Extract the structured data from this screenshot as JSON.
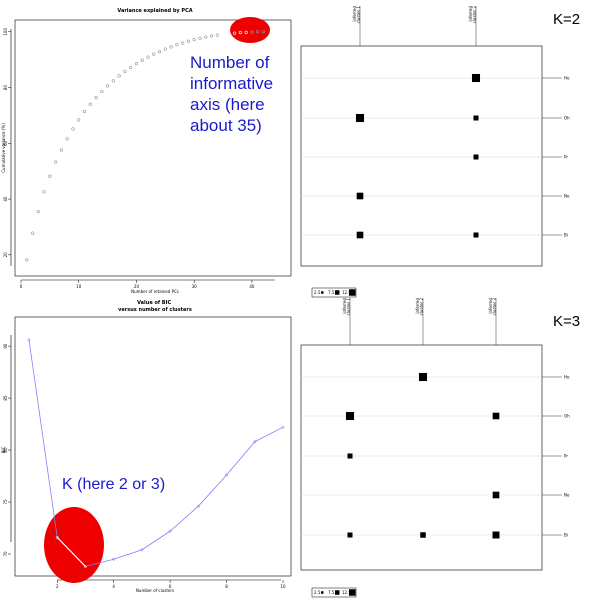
{
  "colors": {
    "pca_points": "#999999",
    "bic_line": "#8080ff",
    "highlight": "#ee0000",
    "annotation_text": "#1a1acc",
    "bubble": "#000000"
  },
  "chart_data": [
    {
      "type": "scatter",
      "title": "Variance explained by PCA",
      "xlabel": "Number of retained PCs",
      "ylabel": "Cumulative variance (%)",
      "xlim": [
        0,
        44
      ],
      "ylim": [
        16,
        101
      ],
      "xticks": [
        0,
        10,
        20,
        30,
        40
      ],
      "yticks": [
        20,
        40,
        60,
        80,
        100
      ],
      "x": [
        1,
        2,
        3,
        4,
        5,
        6,
        7,
        8,
        9,
        10,
        11,
        12,
        13,
        14,
        15,
        16,
        17,
        18,
        19,
        20,
        21,
        22,
        23,
        24,
        25,
        26,
        27,
        28,
        29,
        30,
        31,
        32,
        33,
        34,
        35,
        36,
        37,
        38,
        39,
        40,
        41,
        42
      ],
      "y": [
        18.2,
        27.8,
        35.5,
        42.6,
        48.2,
        53.3,
        57.6,
        61.6,
        65.2,
        68.4,
        71.4,
        74.0,
        76.4,
        78.6,
        80.6,
        82.4,
        84.2,
        85.8,
        87.2,
        88.6,
        89.8,
        90.9,
        92.0,
        92.9,
        93.8,
        94.6,
        95.4,
        96.0,
        96.6,
        97.2,
        97.7,
        98.1,
        98.5,
        98.8,
        99.1,
        99.3,
        99.5,
        99.7,
        99.8,
        99.9,
        100.0,
        100.0
      ],
      "annotation": "Number of informative axis (here about 35)"
    },
    {
      "type": "line",
      "title": "Value of BIC\nversus number of clusters",
      "xlabel": "Number of clusters",
      "ylabel": "BIC",
      "xlim": [
        0.5,
        10.3
      ],
      "ylim": [
        67.5,
        92.8
      ],
      "xticks": [
        2,
        4,
        6,
        8,
        10
      ],
      "yticks": [
        70,
        75,
        80,
        85,
        90
      ],
      "x": [
        1,
        2,
        3,
        4,
        5,
        6,
        7,
        8,
        9,
        10
      ],
      "y": [
        90.6,
        71.6,
        68.8,
        69.5,
        70.4,
        72.2,
        74.6,
        77.6,
        80.8,
        82.2
      ],
      "annotation": "K (here 2 or 3)"
    },
    {
      "type": "table",
      "label": "K=2",
      "columns": [
        "inferred cluster 1",
        "inferred cluster 2"
      ],
      "rows": [
        "He",
        "Oh",
        "Pr",
        "No",
        "Bi"
      ],
      "values": [
        [
          0,
          12
        ],
        [
          12,
          3
        ],
        [
          0,
          3
        ],
        [
          7,
          0
        ],
        [
          7,
          3
        ]
      ],
      "legend": [
        "2.5",
        "7.5",
        "12.5"
      ]
    },
    {
      "type": "table",
      "label": "K=3",
      "columns": [
        "inferred cluster 1",
        "inferred cluster 2",
        "inferred cluster 3"
      ],
      "rows": [
        "He",
        "Oh",
        "Pr",
        "No",
        "Bi"
      ],
      "values": [
        [
          0,
          12,
          0
        ],
        [
          12,
          0,
          7
        ],
        [
          3,
          0,
          0
        ],
        [
          0,
          0,
          7
        ],
        [
          3,
          4,
          8
        ]
      ],
      "legend": [
        "2.5",
        "7.5",
        "12.5"
      ]
    }
  ]
}
